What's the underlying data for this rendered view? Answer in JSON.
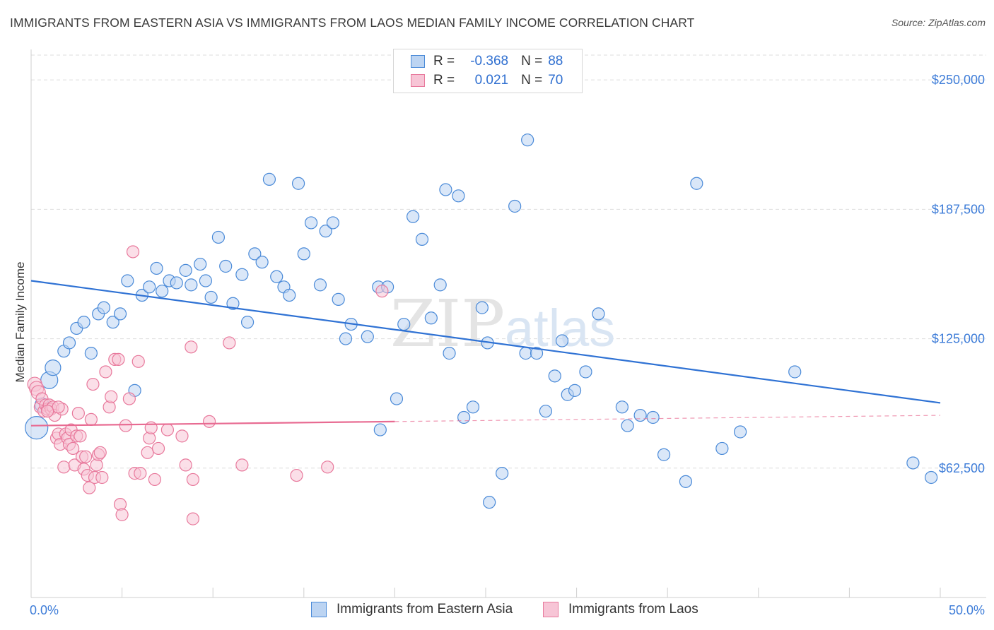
{
  "header": {
    "title": "IMMIGRANTS FROM EASTERN ASIA VS IMMIGRANTS FROM LAOS MEDIAN FAMILY INCOME CORRELATION CHART",
    "source": "Source: ZipAtlas.com"
  },
  "legend": {
    "r_label": "R =",
    "n_label": "N =",
    "blue": {
      "r": "-0.368",
      "n": "88"
    },
    "pink": {
      "r": "0.021",
      "n": "70"
    }
  },
  "watermark": {
    "zip": "ZIP",
    "atlas": "atlas"
  },
  "colors": {
    "blue": "#4a8ad8",
    "blue_fill": "#bcd4f2",
    "blue_line": "#2f72d4",
    "pink": "#e8799c",
    "pink_fill": "#f7c5d6",
    "pink_line": "#e86b92",
    "axis_text": "#3d7cd8",
    "grid": "#dddddd"
  },
  "chart_data": {
    "type": "scatter",
    "title": "IMMIGRANTS FROM EASTERN ASIA VS IMMIGRANTS FROM LAOS MEDIAN FAMILY INCOME CORRELATION CHART",
    "xlabel": "",
    "ylabel": "Median Family Income",
    "xlim": [
      0,
      50
    ],
    "ylim": [
      0,
      262000
    ],
    "x_tick_labels": [
      "0.0%",
      "50.0%"
    ],
    "y_ticks": [
      62500,
      125000,
      187500,
      250000
    ],
    "y_tick_labels": [
      "$62,500",
      "$125,000",
      "$187,500",
      "$250,000"
    ],
    "grid": true,
    "series": [
      {
        "name": "Immigrants from Eastern Asia",
        "color": "blue",
        "points": [
          [
            0.3,
            82000
          ],
          [
            0.6,
            93000
          ],
          [
            1.0,
            105000
          ],
          [
            1.2,
            111000
          ],
          [
            1.8,
            119000
          ],
          [
            2.1,
            123000
          ],
          [
            2.5,
            130000
          ],
          [
            2.9,
            133000
          ],
          [
            3.3,
            118000
          ],
          [
            3.7,
            137000
          ],
          [
            4.0,
            140000
          ],
          [
            4.5,
            133000
          ],
          [
            4.9,
            137000
          ],
          [
            5.3,
            153000
          ],
          [
            5.7,
            100000
          ],
          [
            6.1,
            146000
          ],
          [
            6.5,
            150000
          ],
          [
            6.9,
            159000
          ],
          [
            7.2,
            148000
          ],
          [
            7.6,
            153000
          ],
          [
            8.0,
            152000
          ],
          [
            8.5,
            158000
          ],
          [
            8.8,
            151000
          ],
          [
            9.3,
            161000
          ],
          [
            9.6,
            153000
          ],
          [
            9.9,
            145000
          ],
          [
            10.3,
            174000
          ],
          [
            10.7,
            160000
          ],
          [
            11.1,
            142000
          ],
          [
            11.6,
            156000
          ],
          [
            11.9,
            133000
          ],
          [
            12.3,
            166000
          ],
          [
            12.7,
            162000
          ],
          [
            13.1,
            202000
          ],
          [
            13.5,
            155000
          ],
          [
            13.9,
            150000
          ],
          [
            14.2,
            146000
          ],
          [
            14.7,
            200000
          ],
          [
            15.0,
            166000
          ],
          [
            15.4,
            181000
          ],
          [
            15.9,
            151000
          ],
          [
            16.2,
            177000
          ],
          [
            16.6,
            181000
          ],
          [
            16.9,
            144000
          ],
          [
            17.3,
            125000
          ],
          [
            17.6,
            132000
          ],
          [
            18.5,
            126000
          ],
          [
            19.1,
            150000
          ],
          [
            19.2,
            81000
          ],
          [
            19.6,
            150000
          ],
          [
            20.1,
            96000
          ],
          [
            20.5,
            132000
          ],
          [
            21.0,
            184000
          ],
          [
            21.5,
            173000
          ],
          [
            22.0,
            135000
          ],
          [
            22.5,
            151000
          ],
          [
            22.8,
            197000
          ],
          [
            23.0,
            118000
          ],
          [
            23.5,
            194000
          ],
          [
            23.8,
            87000
          ],
          [
            24.3,
            92000
          ],
          [
            24.8,
            140000
          ],
          [
            25.1,
            123000
          ],
          [
            25.9,
            60000
          ],
          [
            25.2,
            46000
          ],
          [
            26.6,
            189000
          ],
          [
            27.3,
            221000
          ],
          [
            27.2,
            118000
          ],
          [
            27.8,
            118000
          ],
          [
            28.3,
            90000
          ],
          [
            28.8,
            107000
          ],
          [
            29.2,
            124000
          ],
          [
            29.5,
            98000
          ],
          [
            29.9,
            100000
          ],
          [
            30.5,
            109000
          ],
          [
            31.2,
            137000
          ],
          [
            32.5,
            92000
          ],
          [
            32.8,
            83000
          ],
          [
            33.5,
            88000
          ],
          [
            34.2,
            87000
          ],
          [
            34.8,
            69000
          ],
          [
            36.6,
            200000
          ],
          [
            36.0,
            56000
          ],
          [
            38.0,
            72000
          ],
          [
            39.0,
            80000
          ],
          [
            42.0,
            109000
          ],
          [
            48.5,
            65000
          ],
          [
            49.5,
            58000
          ]
        ]
      },
      {
        "name": "Immigrants from Laos",
        "color": "pink",
        "points": [
          [
            0.2,
            103000
          ],
          [
            0.3,
            101000
          ],
          [
            0.4,
            99000
          ],
          [
            0.5,
            92000
          ],
          [
            0.6,
            96000
          ],
          [
            0.7,
            90000
          ],
          [
            0.8,
            93000
          ],
          [
            0.9,
            91000
          ],
          [
            1.0,
            93000
          ],
          [
            1.1,
            91000
          ],
          [
            1.2,
            92000
          ],
          [
            1.3,
            88000
          ],
          [
            1.4,
            77000
          ],
          [
            1.5,
            79000
          ],
          [
            1.6,
            74000
          ],
          [
            1.7,
            91000
          ],
          [
            1.8,
            63000
          ],
          [
            1.9,
            79000
          ],
          [
            2.0,
            77000
          ],
          [
            2.1,
            74000
          ],
          [
            2.2,
            81000
          ],
          [
            2.3,
            72000
          ],
          [
            2.4,
            64000
          ],
          [
            2.5,
            78000
          ],
          [
            2.6,
            89000
          ],
          [
            2.7,
            78000
          ],
          [
            2.8,
            68000
          ],
          [
            2.9,
            62000
          ],
          [
            3.0,
            68000
          ],
          [
            3.1,
            59000
          ],
          [
            3.2,
            53000
          ],
          [
            3.3,
            86000
          ],
          [
            3.4,
            103000
          ],
          [
            3.5,
            58000
          ],
          [
            3.6,
            64000
          ],
          [
            3.7,
            69000
          ],
          [
            3.8,
            70000
          ],
          [
            3.9,
            58000
          ],
          [
            4.1,
            109000
          ],
          [
            4.3,
            92000
          ],
          [
            4.4,
            97000
          ],
          [
            4.6,
            115000
          ],
          [
            4.8,
            115000
          ],
          [
            4.9,
            45000
          ],
          [
            5.0,
            40000
          ],
          [
            5.2,
            83000
          ],
          [
            5.4,
            96000
          ],
          [
            5.6,
            167000
          ],
          [
            5.7,
            60000
          ],
          [
            5.9,
            114000
          ],
          [
            6.0,
            60000
          ],
          [
            6.4,
            70000
          ],
          [
            6.5,
            77000
          ],
          [
            6.6,
            82000
          ],
          [
            6.8,
            57000
          ],
          [
            7.0,
            72000
          ],
          [
            7.5,
            81000
          ],
          [
            8.3,
            78000
          ],
          [
            8.5,
            64000
          ],
          [
            8.8,
            121000
          ],
          [
            8.9,
            57000
          ],
          [
            8.9,
            38000
          ],
          [
            9.8,
            85000
          ],
          [
            10.9,
            123000
          ],
          [
            11.6,
            64000
          ],
          [
            14.6,
            59000
          ],
          [
            16.3,
            63000
          ],
          [
            19.3,
            148000
          ],
          [
            1.5,
            92000
          ],
          [
            0.9,
            90000
          ]
        ]
      }
    ],
    "trend_lines": [
      {
        "series": "Immigrants from Eastern Asia",
        "x": [
          0,
          50
        ],
        "y": [
          153000,
          94000
        ],
        "dashed_from": null
      },
      {
        "series": "Immigrants from Laos",
        "x": [
          0,
          50
        ],
        "y": [
          83000,
          88000
        ],
        "solid_until": 20
      }
    ]
  },
  "bottom_legend": {
    "blue_label": "Immigrants from Eastern Asia",
    "pink_label": "Immigrants from Laos"
  }
}
